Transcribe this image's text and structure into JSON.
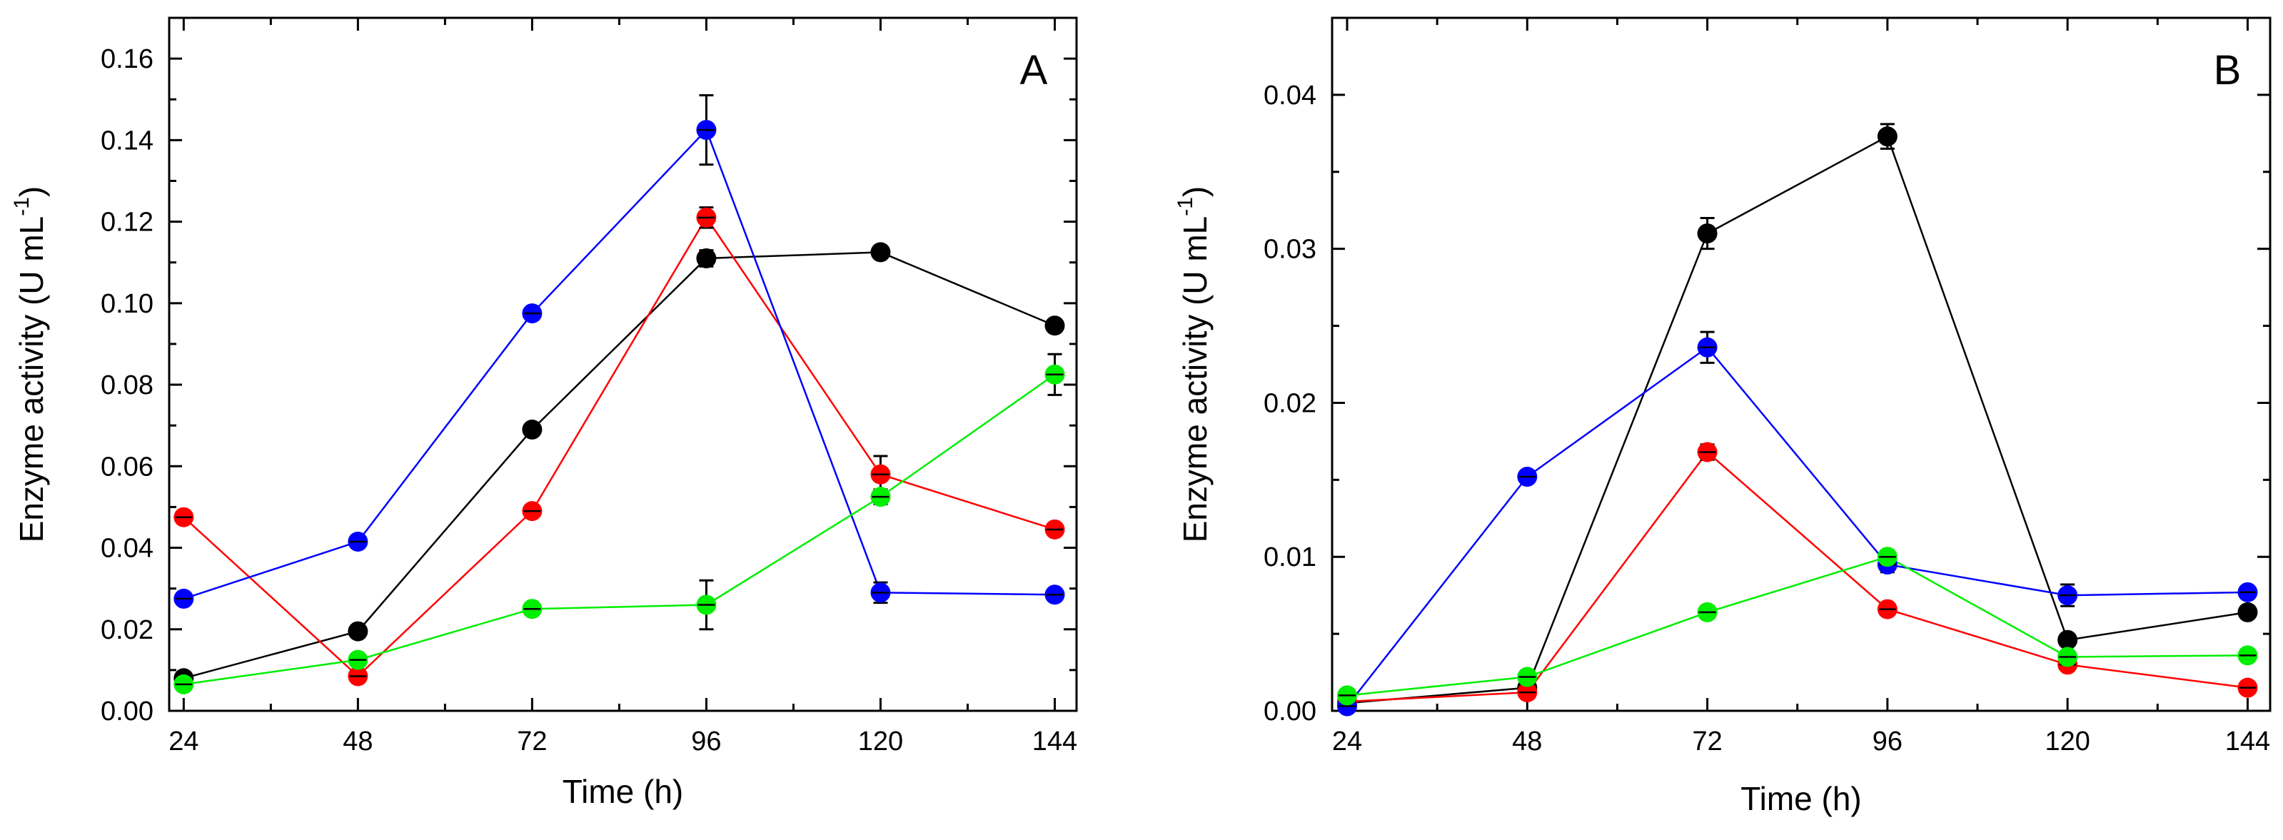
{
  "figure": {
    "background": "#ffffff"
  },
  "chart_data": [
    {
      "type": "line",
      "panel_label": "A",
      "xlabel": "Time (h)",
      "ylabel": "Enzyme activity (U mL",
      "ylabel_superscript": "-1",
      "ylabel_close": ")",
      "x": [
        24,
        48,
        72,
        96,
        120,
        144
      ],
      "xlim": [
        22,
        147
      ],
      "ylim": [
        0,
        0.17
      ],
      "xticks": [
        24,
        48,
        72,
        96,
        120,
        144
      ],
      "yticks": [
        "0.00",
        "0.02",
        "0.04",
        "0.06",
        "0.08",
        "0.10",
        "0.12",
        "0.14",
        "0.16"
      ],
      "series": [
        {
          "name": "black",
          "color": "#000000",
          "values": [
            0.008,
            0.0195,
            0.069,
            0.111,
            0.1125,
            0.0945
          ],
          "errors": [
            0.001,
            0.001,
            0.0012,
            0.002,
            0.0012,
            0.0015
          ]
        },
        {
          "name": "red",
          "color": "#ff0000",
          "values": [
            0.0475,
            0.0085,
            0.049,
            0.121,
            0.058,
            0.0445
          ],
          "errors": [
            0.0015,
            0.001,
            0.0012,
            0.0025,
            0.0045,
            0.0012
          ]
        },
        {
          "name": "blue",
          "color": "#0000ff",
          "values": [
            0.0275,
            0.0415,
            0.0975,
            0.1425,
            0.029,
            0.0285
          ],
          "errors": [
            0.001,
            0.001,
            0.0012,
            0.0085,
            0.0025,
            0.0012
          ]
        },
        {
          "name": "green",
          "color": "#00ee00",
          "values": [
            0.0065,
            0.0125,
            0.025,
            0.026,
            0.0525,
            0.0825
          ],
          "errors": [
            0.001,
            0.001,
            0.001,
            0.006,
            0.0018,
            0.005
          ]
        }
      ]
    },
    {
      "type": "line",
      "panel_label": "B",
      "xlabel": "Time (h)",
      "ylabel": "Enzyme activity (U mL",
      "ylabel_superscript": "-1",
      "ylabel_close": ")",
      "x": [
        24,
        48,
        72,
        96,
        120,
        144
      ],
      "xlim": [
        22,
        147
      ],
      "ylim": [
        0,
        0.045
      ],
      "xticks": [
        24,
        48,
        72,
        96,
        120,
        144
      ],
      "yticks": [
        "0.00",
        "0.01",
        "0.02",
        "0.03",
        "0.04"
      ],
      "series": [
        {
          "name": "black",
          "color": "#000000",
          "values": [
            0.0005,
            0.0015,
            0.031,
            0.0373,
            0.0046,
            0.0064
          ],
          "errors": [
            0.0003,
            0.0003,
            0.001,
            0.0008,
            0.0004,
            0.0004
          ]
        },
        {
          "name": "red",
          "color": "#ff0000",
          "values": [
            0.0006,
            0.0012,
            0.0168,
            0.0066,
            0.003,
            0.0015
          ],
          "errors": [
            0.0003,
            0.0003,
            0.0005,
            0.0003,
            0.0003,
            0.0003
          ]
        },
        {
          "name": "blue",
          "color": "#0000ff",
          "values": [
            0.0003,
            0.0152,
            0.0236,
            0.0095,
            0.0075,
            0.0077
          ],
          "errors": [
            0.0003,
            0.0003,
            0.001,
            0.0005,
            0.0007,
            0.0004
          ]
        },
        {
          "name": "green",
          "color": "#00ee00",
          "values": [
            0.001,
            0.0022,
            0.0064,
            0.01,
            0.0035,
            0.0036
          ],
          "errors": [
            0.0003,
            0.0004,
            0.0004,
            0.0004,
            0.0004,
            0.0004
          ]
        }
      ]
    }
  ]
}
